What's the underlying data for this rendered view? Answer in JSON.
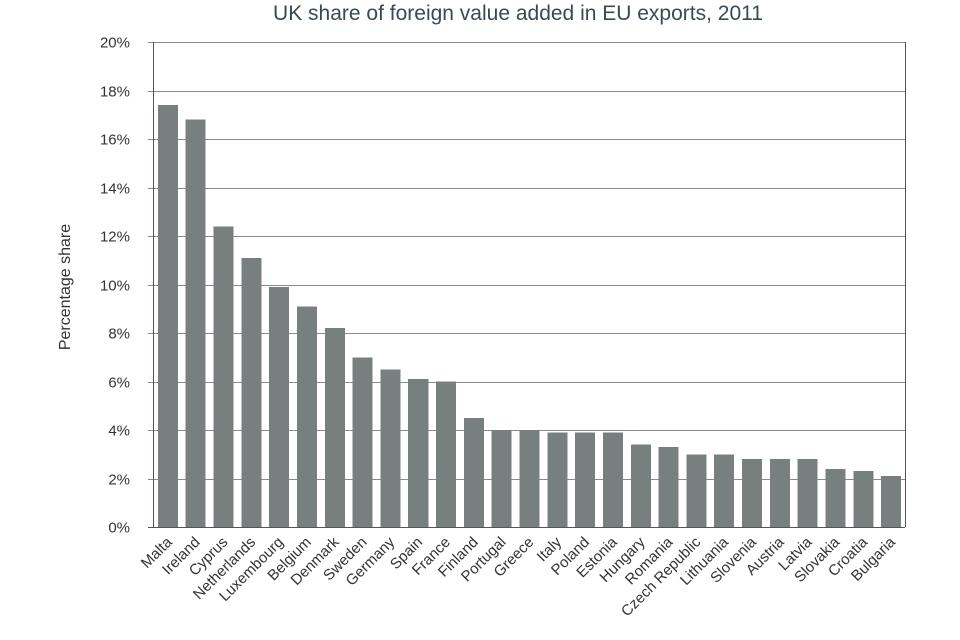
{
  "chart_data": {
    "type": "bar",
    "title": "UK share of foreign value added in EU exports, 2011",
    "xlabel": "",
    "ylabel": "Percentage share",
    "ylim": [
      0,
      20
    ],
    "ytick_step": 2,
    "ytick_labels": [
      "0%",
      "2%",
      "4%",
      "6%",
      "8%",
      "10%",
      "12%",
      "14%",
      "16%",
      "18%",
      "20%"
    ],
    "grid": true,
    "bar_color": "#78807f",
    "categories": [
      "Malta",
      "Ireland",
      "Cyprus",
      "Netherlands",
      "Luxembourg",
      "Belgium",
      "Denmark",
      "Sweden",
      "Germany",
      "Spain",
      "France",
      "Finland",
      "Portugal",
      "Greece",
      "Italy",
      "Poland",
      "Estonia",
      "Hungary",
      "Romania",
      "Czech Republic",
      "Lithuania",
      "Slovenia",
      "Austria",
      "Latvia",
      "Slovakia",
      "Croatia",
      "Bulgaria"
    ],
    "values": [
      17.4,
      16.8,
      12.4,
      11.1,
      9.9,
      9.1,
      8.2,
      7.0,
      6.5,
      6.1,
      6.0,
      4.5,
      4.0,
      4.0,
      3.9,
      3.9,
      3.9,
      3.4,
      3.3,
      3.0,
      3.0,
      2.8,
      2.8,
      2.8,
      2.4,
      2.3,
      2.1
    ]
  }
}
